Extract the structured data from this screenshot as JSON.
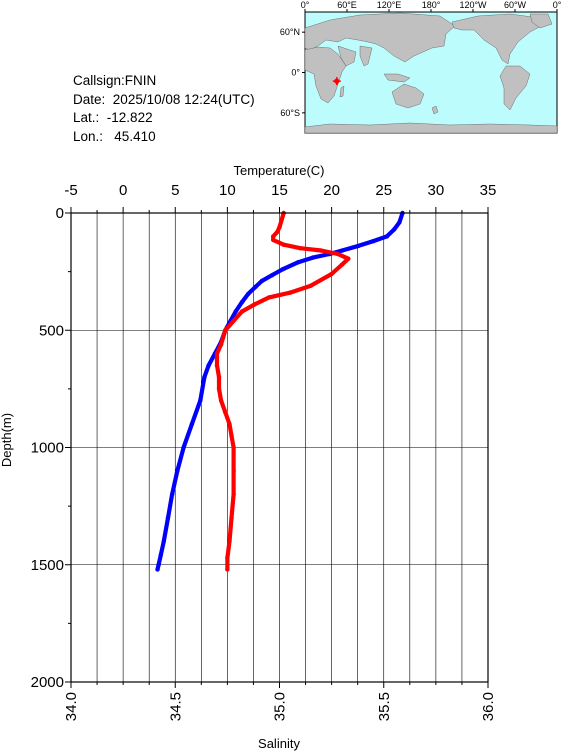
{
  "station": {
    "callsign_label": "Callsign:",
    "callsign": "FNIN",
    "date_label": "Date:",
    "date": "2025/10/08 12:24(UTC)",
    "lat_label": "Lat.:",
    "lat": "-12.822",
    "lon_label": "Lon.:",
    "lon": "45.410"
  },
  "map": {
    "lon_labels": [
      "0°",
      "60°E",
      "120°E",
      "180°",
      "120°W",
      "60°W",
      "0°"
    ],
    "lat_labels": [
      "60°N",
      "0°",
      "60°S"
    ],
    "ocean_color": "#bdfcfc",
    "land_color": "#c0c0c0",
    "marker_color": "#ff0000",
    "marker_lat": -12.822,
    "marker_lon": 45.41
  },
  "chart_data": {
    "type": "line",
    "title": "",
    "top_axis": {
      "label": "Temperature(C)",
      "range": [
        -5,
        35
      ],
      "ticks": [
        "-5",
        "0",
        "5",
        "10",
        "15",
        "20",
        "25",
        "30",
        "35"
      ]
    },
    "bottom_axis": {
      "label": "Salinity",
      "range": [
        34.0,
        36.0
      ],
      "ticks": [
        "34.0",
        "34.5",
        "35.0",
        "35.5",
        "36.0"
      ]
    },
    "y_axis": {
      "label": "Depth(m)",
      "range": [
        0,
        2000
      ],
      "inverted": true,
      "ticks": [
        "0",
        "500",
        "1000",
        "1500",
        "2000"
      ]
    },
    "grid": true,
    "series": [
      {
        "variable": "temperature",
        "color": "#0000ff",
        "points": [
          [
            26.8,
            0
          ],
          [
            26.5,
            40
          ],
          [
            26.0,
            70
          ],
          [
            25.3,
            100
          ],
          [
            24.0,
            120
          ],
          [
            22.6,
            140
          ],
          [
            21.0,
            160
          ],
          [
            19.8,
            175
          ],
          [
            18.2,
            190
          ],
          [
            16.8,
            210
          ],
          [
            15.3,
            240
          ],
          [
            14.3,
            265
          ],
          [
            13.3,
            290
          ],
          [
            12.7,
            315
          ],
          [
            12.0,
            345
          ],
          [
            11.4,
            380
          ],
          [
            10.8,
            420
          ],
          [
            10.3,
            460
          ],
          [
            9.8,
            500
          ],
          [
            9.4,
            550
          ],
          [
            8.8,
            600
          ],
          [
            8.2,
            650
          ],
          [
            7.8,
            700
          ],
          [
            7.4,
            800
          ],
          [
            6.6,
            900
          ],
          [
            5.8,
            1000
          ],
          [
            5.2,
            1100
          ],
          [
            4.7,
            1200
          ],
          [
            4.3,
            1300
          ],
          [
            3.9,
            1400
          ],
          [
            3.6,
            1460
          ],
          [
            3.4,
            1500
          ],
          [
            3.3,
            1520
          ]
        ]
      },
      {
        "variable": "salinity",
        "color": "#ff0000",
        "points": [
          [
            35.02,
            0
          ],
          [
            35.01,
            30
          ],
          [
            35.0,
            60
          ],
          [
            34.99,
            80
          ],
          [
            34.97,
            100
          ],
          [
            34.97,
            115
          ],
          [
            35.02,
            135
          ],
          [
            35.1,
            150
          ],
          [
            35.2,
            160
          ],
          [
            35.28,
            175
          ],
          [
            35.33,
            195
          ],
          [
            35.3,
            220
          ],
          [
            35.25,
            260
          ],
          [
            35.15,
            310
          ],
          [
            35.05,
            340
          ],
          [
            34.95,
            360
          ],
          [
            34.88,
            390
          ],
          [
            34.82,
            420
          ],
          [
            34.78,
            460
          ],
          [
            34.74,
            500
          ],
          [
            34.73,
            530
          ],
          [
            34.72,
            560
          ],
          [
            34.7,
            600
          ],
          [
            34.7,
            650
          ],
          [
            34.71,
            700
          ],
          [
            34.71,
            750
          ],
          [
            34.72,
            800
          ],
          [
            34.74,
            850
          ],
          [
            34.76,
            900
          ],
          [
            34.77,
            950
          ],
          [
            34.78,
            1000
          ],
          [
            34.78,
            1100
          ],
          [
            34.78,
            1200
          ],
          [
            34.77,
            1300
          ],
          [
            34.76,
            1400
          ],
          [
            34.75,
            1470
          ],
          [
            34.75,
            1520
          ]
        ]
      }
    ]
  }
}
